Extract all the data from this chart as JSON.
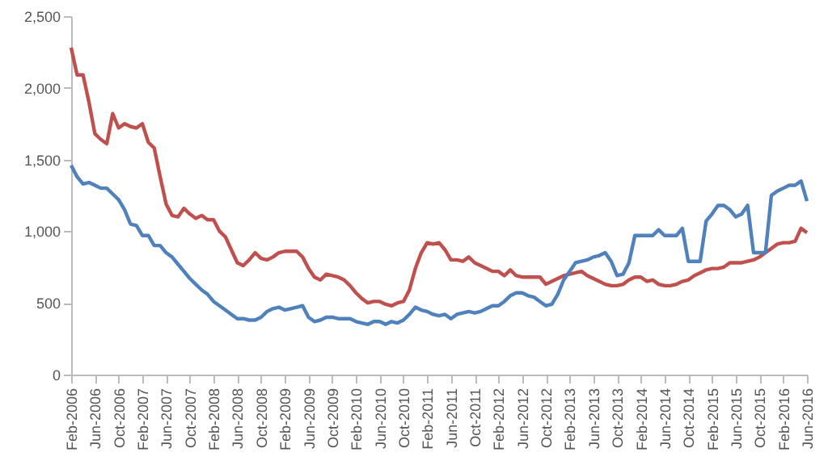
{
  "chart_data": {
    "type": "line",
    "categories": [
      "Feb-2006",
      null,
      null,
      null,
      "Jun-2006",
      null,
      null,
      null,
      "Oct-2006",
      null,
      null,
      null,
      "Feb-2007",
      null,
      null,
      null,
      "Jun-2007",
      null,
      null,
      null,
      "Oct-2007",
      null,
      null,
      null,
      "Feb-2008",
      null,
      null,
      null,
      "Jun-2008",
      null,
      null,
      null,
      "Oct-2008",
      null,
      null,
      null,
      "Feb-2009",
      null,
      null,
      null,
      "Jun-2009",
      null,
      null,
      null,
      "Oct-2009",
      null,
      null,
      null,
      "Feb-2010",
      null,
      null,
      null,
      "Jun-2010",
      null,
      null,
      null,
      "Oct-2010",
      null,
      null,
      null,
      "Feb-2011",
      null,
      null,
      null,
      "Jun-2011",
      null,
      null,
      null,
      "Oct-2011",
      null,
      null,
      null,
      "Feb-2012",
      null,
      null,
      null,
      "Jun-2012",
      null,
      null,
      null,
      "Oct-2012",
      null,
      null,
      null,
      "Feb-2013",
      null,
      null,
      null,
      "Jun-2013",
      null,
      null,
      null,
      "Oct-2013",
      null,
      null,
      null,
      "Feb-2014",
      null,
      null,
      null,
      "Jun-2014",
      null,
      null,
      null,
      "Oct-2014",
      null,
      null,
      null,
      "Feb-2015",
      null,
      null,
      null,
      "Jun-2015",
      null,
      null,
      null,
      "Oct-2015",
      null,
      null,
      null,
      "Feb-2016",
      null,
      null,
      null,
      "Jun-2016"
    ],
    "series": [
      {
        "color": "#c0504d",
        "values": [
          2280,
          2090,
          2090,
          1900,
          1680,
          1640,
          1610,
          1820,
          1720,
          1750,
          1730,
          1720,
          1750,
          1620,
          1580,
          1380,
          1190,
          1110,
          1100,
          1160,
          1120,
          1090,
          1110,
          1080,
          1080,
          1000,
          960,
          870,
          780,
          760,
          800,
          850,
          810,
          800,
          820,
          850,
          860,
          860,
          860,
          820,
          740,
          680,
          660,
          700,
          690,
          680,
          660,
          620,
          570,
          530,
          500,
          510,
          510,
          490,
          480,
          500,
          510,
          590,
          740,
          850,
          920,
          910,
          920,
          870,
          800,
          800,
          790,
          820,
          780,
          760,
          740,
          720,
          720,
          690,
          730,
          690,
          680,
          680,
          680,
          680,
          630,
          650,
          670,
          690,
          700,
          710,
          720,
          690,
          670,
          650,
          630,
          620,
          620,
          630,
          660,
          680,
          680,
          650,
          660,
          630,
          620,
          620,
          630,
          650,
          660,
          690,
          710,
          730,
          740,
          740,
          750,
          780,
          780,
          780,
          790,
          800,
          820,
          850,
          880,
          910,
          920,
          920,
          930,
          1020,
          990
        ]
      },
      {
        "color": "#4f81bd",
        "values": [
          1460,
          1380,
          1330,
          1340,
          1320,
          1300,
          1300,
          1260,
          1220,
          1150,
          1050,
          1040,
          970,
          970,
          900,
          900,
          850,
          820,
          770,
          720,
          670,
          630,
          590,
          560,
          510,
          480,
          450,
          420,
          390,
          390,
          380,
          380,
          400,
          440,
          460,
          470,
          450,
          460,
          470,
          480,
          400,
          370,
          380,
          400,
          400,
          390,
          390,
          390,
          370,
          360,
          350,
          370,
          370,
          350,
          370,
          360,
          380,
          420,
          470,
          450,
          440,
          420,
          410,
          420,
          390,
          420,
          430,
          440,
          430,
          440,
          460,
          480,
          480,
          510,
          550,
          570,
          570,
          550,
          540,
          510,
          480,
          490,
          560,
          660,
          720,
          780,
          790,
          800,
          820,
          830,
          850,
          790,
          690,
          700,
          780,
          970,
          970,
          970,
          970,
          1010,
          970,
          970,
          970,
          1020,
          790,
          790,
          790,
          1070,
          1120,
          1180,
          1180,
          1150,
          1100,
          1120,
          1180,
          850,
          850,
          850,
          1250,
          1280,
          1300,
          1320,
          1320,
          1350,
          1210
        ]
      }
    ],
    "ylim": [
      0,
      2500
    ],
    "yticks": [
      0,
      500,
      {
        "value": 1000,
        "label": "1,000"
      },
      {
        "value": 1500,
        "label": "1,500"
      },
      {
        "value": 2000,
        "label": "2,000"
      },
      {
        "value": 2500,
        "label": "2,500"
      }
    ]
  }
}
